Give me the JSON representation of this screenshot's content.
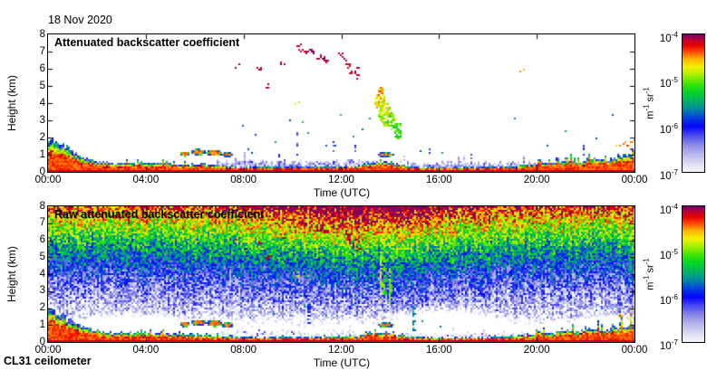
{
  "chart_data": {
    "type": "heatmap",
    "title": "18 Nov 2020",
    "footer": "CL31 ceilometer",
    "x": {
      "label": "Time (UTC)",
      "range_hours": [
        0,
        24
      ],
      "tick_hours": [
        0,
        4,
        8,
        12,
        16,
        20,
        24
      ],
      "tick_labels": [
        "00:00",
        "04:00",
        "08:00",
        "12:00",
        "16:00",
        "20:00",
        "00:00"
      ]
    },
    "y": {
      "label": "Height (km)",
      "range_km": [
        0,
        8
      ],
      "tick_labels": [
        "0",
        "1",
        "2",
        "3",
        "4",
        "5",
        "6",
        "7",
        "8"
      ]
    },
    "value_scale": {
      "log10_range": [
        -7,
        -4
      ]
    },
    "colorbar": {
      "tick_labels": [
        "10^-4",
        "10^-5",
        "10^-6",
        "10^-7"
      ],
      "tick_values_log10": [
        -4,
        -5,
        -6,
        -7
      ],
      "unit": "m^-1 sr^-1",
      "stops": [
        [
          0.0,
          "#f6f6fd"
        ],
        [
          0.05,
          "#e2e2f6"
        ],
        [
          0.12,
          "#bcbcee"
        ],
        [
          0.19,
          "#9090e6"
        ],
        [
          0.26,
          "#5050ee"
        ],
        [
          0.33,
          "#0404fe"
        ],
        [
          0.4,
          "#0048d8"
        ],
        [
          0.46,
          "#008c9c"
        ],
        [
          0.52,
          "#00b464"
        ],
        [
          0.58,
          "#00d428"
        ],
        [
          0.64,
          "#3ce400"
        ],
        [
          0.7,
          "#a0ee00"
        ],
        [
          0.76,
          "#f2f200"
        ],
        [
          0.82,
          "#ffb400"
        ],
        [
          0.87,
          "#ff5000"
        ],
        [
          0.92,
          "#e80000"
        ],
        [
          0.96,
          "#bc0030"
        ],
        [
          1.0,
          "#6e006e"
        ]
      ]
    },
    "panels": [
      {
        "label": "Attenuated backscatter coefficient",
        "mode": "processed",
        "ylabel": "Height (km)",
        "xlabel": "Time (UTC)"
      },
      {
        "label": "Raw attenuated backscatter coefficient",
        "mode": "raw",
        "ylabel": "Height (km)",
        "xlabel": "Time (UTC)"
      }
    ],
    "features": {
      "boundary_layer_top_km": [
        [
          0,
          1.9
        ],
        [
          0.5,
          1.7
        ],
        [
          1,
          1.15
        ],
        [
          1.5,
          0.85
        ],
        [
          2,
          0.6
        ],
        [
          2.5,
          0.5
        ],
        [
          3.5,
          0.52
        ],
        [
          4.5,
          0.5
        ],
        [
          5.5,
          0.42
        ],
        [
          6.5,
          0.38
        ],
        [
          7.2,
          0.33
        ],
        [
          7.6,
          0.28
        ],
        [
          9,
          0.27
        ],
        [
          11,
          0.29
        ],
        [
          12.6,
          0.33
        ],
        [
          13.2,
          0.5
        ],
        [
          13.8,
          0.55
        ],
        [
          14.3,
          0.38
        ],
        [
          15,
          0.27
        ],
        [
          16,
          0.24
        ],
        [
          17,
          0.26
        ],
        [
          18,
          0.28
        ],
        [
          19,
          0.3
        ],
        [
          19.8,
          0.42
        ],
        [
          20.3,
          0.55
        ],
        [
          20.8,
          0.48
        ],
        [
          21.3,
          0.7
        ],
        [
          21.8,
          0.58
        ],
        [
          22.3,
          0.75
        ],
        [
          22.8,
          0.65
        ],
        [
          23.4,
          0.85
        ],
        [
          24,
          1.05
        ]
      ],
      "spike_regions": [
        {
          "t0": 1.8,
          "t1": 7.6,
          "p": 0.28,
          "a": 0.5
        },
        {
          "t0": 12.8,
          "t1": 14.6,
          "p": 0.3,
          "a": 0.45
        },
        {
          "t0": 19.6,
          "t1": 24,
          "p": 0.5,
          "a": 0.7
        }
      ],
      "haze_layers": [
        {
          "t0": 6.9,
          "t1": 13.4,
          "h": 0.62
        },
        {
          "t0": 13.9,
          "t1": 24,
          "h": 0.5
        }
      ],
      "clouds": [
        {
          "t": 5.6,
          "h": 1.05,
          "rt": 0.22,
          "rh": 0.16
        },
        {
          "t": 6.15,
          "h": 1.15,
          "rt": 0.3,
          "rh": 0.18
        },
        {
          "t": 6.8,
          "h": 1.1,
          "rt": 0.33,
          "rh": 0.2
        },
        {
          "t": 7.35,
          "h": 1.0,
          "rt": 0.25,
          "rh": 0.15
        },
        {
          "t": 13.82,
          "h": 1.0,
          "rt": 0.35,
          "rh": 0.14
        }
      ],
      "virga_blobs": [
        {
          "t": 13.58,
          "h": 4.15,
          "rt": 0.22,
          "rh": 0.6,
          "v": -4.7
        },
        {
          "t": 13.78,
          "h": 3.35,
          "rt": 0.26,
          "rh": 0.7,
          "v": -4.8
        },
        {
          "t": 14.02,
          "h": 2.95,
          "rt": 0.2,
          "rh": 0.55,
          "v": -5.0
        },
        {
          "t": 14.32,
          "h": 2.4,
          "rt": 0.18,
          "rh": 0.5,
          "v": -5.15
        },
        {
          "t": 13.62,
          "h": 4.6,
          "rt": 0.13,
          "rh": 0.35,
          "v": -4.55
        }
      ],
      "cirrus_dots": [
        [
          10.25,
          7.45
        ],
        [
          10.32,
          7.18
        ],
        [
          10.55,
          6.95
        ],
        [
          10.78,
          7.08
        ],
        [
          11.05,
          6.72
        ],
        [
          11.18,
          6.58
        ],
        [
          11.38,
          6.48
        ],
        [
          11.95,
          6.95
        ],
        [
          12.1,
          6.68
        ],
        [
          12.22,
          6.42
        ],
        [
          12.32,
          6.18
        ],
        [
          12.42,
          5.92
        ],
        [
          12.52,
          5.72
        ],
        [
          12.62,
          6.05
        ],
        [
          12.72,
          5.58
        ],
        [
          7.7,
          6.18
        ],
        [
          8.62,
          5.98
        ],
        [
          8.95,
          5.05
        ],
        [
          9.6,
          6.3
        ]
      ],
      "red_dots": [
        [
          19.35,
          6.05
        ],
        [
          23.3,
          1.55
        ],
        [
          23.55,
          1.72
        ],
        [
          23.75,
          1.5
        ],
        [
          23.9,
          1.85
        ]
      ],
      "orange_dots": [
        [
          10.2,
          4.1
        ]
      ],
      "yellow_dots": [
        [
          10.3,
          2.9
        ],
        [
          12.05,
          3.4
        ]
      ],
      "green_dots": [
        [
          7.9,
          2.7
        ],
        [
          8.5,
          2.2
        ],
        [
          9.3,
          1.8
        ],
        [
          9.85,
          2.9
        ],
        [
          10.5,
          2.3
        ],
        [
          11.3,
          1.7
        ],
        [
          12.4,
          2.1
        ],
        [
          12.9,
          2.55
        ],
        [
          13.15,
          3.2
        ],
        [
          8.2,
          1.5
        ],
        [
          11.8,
          1.45
        ],
        [
          15.2,
          1.25
        ],
        [
          19.0,
          3.15
        ],
        [
          21.2,
          2.5
        ],
        [
          23.05,
          3.3
        ],
        [
          22.3,
          1.9
        ],
        [
          20.3,
          1.6
        ],
        [
          16.1,
          1.1
        ]
      ],
      "blue_columns": [
        [
          9.45,
          1.7
        ],
        [
          10.15,
          2.35
        ],
        [
          10.9,
          1.35
        ],
        [
          11.65,
          2.05
        ],
        [
          12.55,
          1.6
        ],
        [
          8.3,
          1.2
        ],
        [
          15.6,
          1.4
        ],
        [
          17.3,
          1.1
        ],
        [
          21.9,
          1.6
        ]
      ],
      "raw_noise": {
        "floor": -7.06,
        "slope": 2.78,
        "pow": 1.55,
        "day_amp": 0.5,
        "day_t": 12.8,
        "day_w": 4.3,
        "speckle": 1.05,
        "low_u": 0.22,
        "low_k": 5,
        "col_stripe": 0.35
      },
      "raw_white_regions": [
        {
          "t": 3.6,
          "h": 0.85,
          "rt": 2.9,
          "rh": 0.85
        },
        {
          "t": 16.2,
          "h": 1.05,
          "rt": 2.7,
          "rh": 1.2
        },
        {
          "t": 20.9,
          "h": 0.75,
          "rt": 0.9,
          "rh": 0.55
        },
        {
          "t": 22.9,
          "h": 0.95,
          "rt": 1.2,
          "rh": 0.75
        },
        {
          "t": 9.2,
          "h": 0.5,
          "rt": 1.1,
          "rh": 0.4
        },
        {
          "t": 12.4,
          "h": 0.5,
          "rt": 0.8,
          "rh": 0.35
        }
      ],
      "raw_streaks": [
        {
          "t": 13.55,
          "h0": 2.6,
          "h1": 5.4,
          "v": -4.7
        },
        {
          "t": 13.72,
          "h0": 2.9,
          "h1": 5.1,
          "v": -4.95
        },
        {
          "t": 13.95,
          "h0": 2.4,
          "h1": 4.7,
          "v": -4.85
        },
        {
          "t": 14.9,
          "h0": 0.4,
          "h1": 2.2,
          "v": -5.5
        },
        {
          "t": 10.6,
          "h0": 1.2,
          "h1": 2.6,
          "v": -5.8
        }
      ]
    }
  }
}
